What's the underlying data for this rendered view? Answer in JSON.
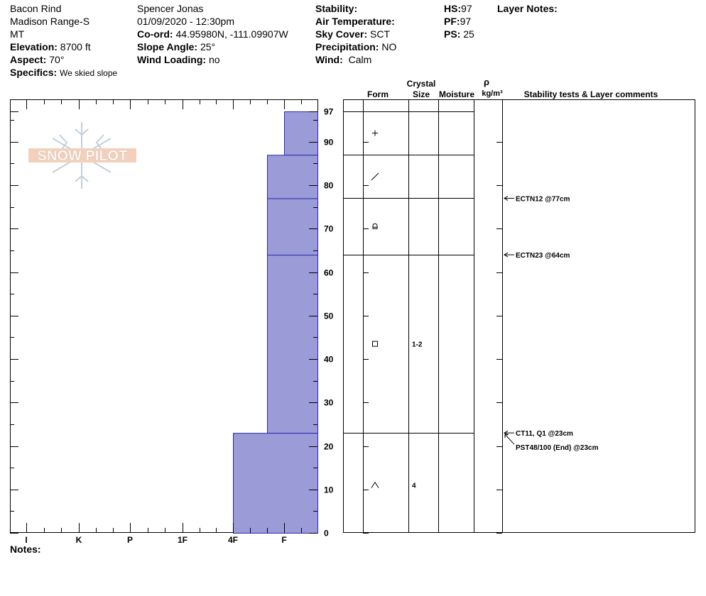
{
  "header": {
    "location": "Bacon Rind",
    "range": "Madison Range-S",
    "state": "MT",
    "elevation_label": "Elevation:",
    "elevation": "8700 ft",
    "aspect_label": "Aspect:",
    "aspect": "70°",
    "specifics_label": "Specifics:",
    "specifics": "We skied slope",
    "observer": "Spencer Jonas",
    "datetime": "01/09/2020 - 12:30pm",
    "coord_label": "Co-ord:",
    "coord": "44.95980N, -111.09907W",
    "slope_label": "Slope Angle:",
    "slope": "25°",
    "wind_loading_label": "Wind Loading:",
    "wind_loading": "no",
    "stability_label": "Stability:",
    "stability": "",
    "air_temp_label": "Air Temperature:",
    "air_temp": "",
    "sky_label": "Sky Cover:",
    "sky": "SCT",
    "precip_label": "Precipitation:",
    "precip": "NO",
    "wind_label": "Wind:",
    "wind": "Calm",
    "hs_label": "HS:",
    "hs": "97",
    "pf_label": "PF:",
    "pf": "97",
    "ps_label": "PS:",
    "ps": "25",
    "layer_notes_label": "Layer Notes:",
    "notes_label": "Notes:"
  },
  "logo_text": "SNOW PILOT",
  "columns": {
    "crystal": "Crystal",
    "form": "Form",
    "size": "Size",
    "moisture": "Moisture",
    "rho": "ρ",
    "density_unit": "kg/m³",
    "stability_tests": "Stability tests & Layer comments"
  },
  "colors": {
    "hardness_fill": "#9b9bd7",
    "hardness_stroke": "#2a2ab0"
  },
  "chart_data": {
    "type": "bar",
    "hardness_categories": [
      "I",
      "K",
      "P",
      "1F",
      "4F",
      "F"
    ],
    "depth_ticks": [
      0,
      10,
      20,
      30,
      40,
      50,
      60,
      70,
      80,
      90,
      97
    ],
    "ylim": [
      0,
      97
    ],
    "layers": [
      {
        "top": 97,
        "bottom": 87,
        "hardness": "F"
      },
      {
        "top": 87,
        "bottom": 77,
        "hardness": "F+"
      },
      {
        "top": 77,
        "bottom": 64,
        "hardness": "F+"
      },
      {
        "top": 64,
        "bottom": 23,
        "hardness": "F+"
      },
      {
        "top": 23,
        "bottom": 0,
        "hardness": "4F"
      }
    ],
    "layer_boundaries": [
      97,
      87,
      77,
      64,
      23
    ],
    "crystals": [
      {
        "depth": 92,
        "form": "+",
        "size": ""
      },
      {
        "depth": 82,
        "form": "/",
        "size": ""
      },
      {
        "depth": 70.5,
        "form": "rounded",
        "size": ""
      },
      {
        "depth": 43.5,
        "form": "□",
        "size": "1-2"
      },
      {
        "depth": 11,
        "form": "^",
        "size": "4"
      }
    ],
    "tests": [
      {
        "depth": 77,
        "label": "ECTN12 @77cm"
      },
      {
        "depth": 64,
        "label": "ECTN23 @64cm"
      },
      {
        "depth": 23,
        "label": "CT11, Q1 @23cm"
      },
      {
        "depth": 23,
        "label": "PST48/100 (End) @23cm",
        "offset": 1
      }
    ]
  }
}
